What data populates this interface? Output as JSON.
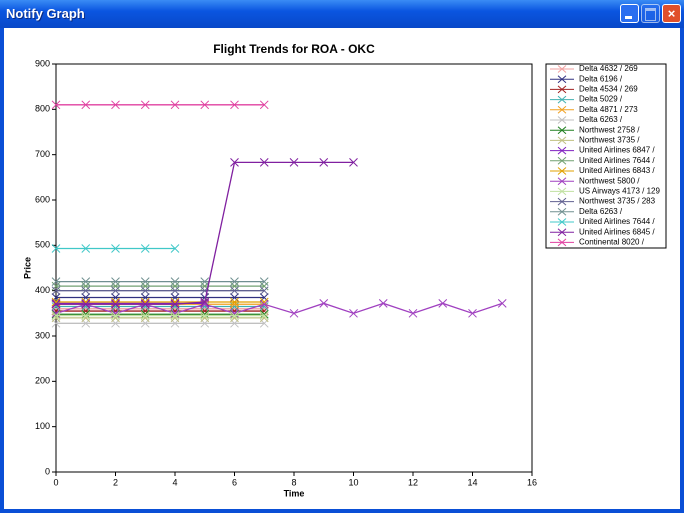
{
  "window_title": "Notify Graph",
  "chart_data": {
    "type": "line",
    "title": "Flight Trends for ROA - OKC",
    "xlabel": "Time",
    "ylabel": "Price",
    "x": [
      0,
      1,
      2,
      3,
      4,
      5,
      6,
      7,
      8,
      9,
      10,
      11,
      12,
      13,
      14,
      15
    ],
    "xlim": [
      0,
      16
    ],
    "xticks": [
      0,
      2,
      4,
      6,
      8,
      10,
      12,
      14,
      16
    ],
    "ylim": [
      0,
      900
    ],
    "yticks": [
      0,
      100,
      200,
      300,
      400,
      500,
      600,
      700,
      800,
      900
    ],
    "legend": "right",
    "series": [
      {
        "name": "Delta 4632 / 269",
        "color": "#f0a0a0",
        "values": [
          360,
          360,
          360,
          360,
          360,
          360,
          360,
          360,
          null,
          null,
          null,
          null,
          null,
          null,
          null,
          null
        ]
      },
      {
        "name": "Delta 6196 /",
        "color": "#303080",
        "values": [
          385,
          385,
          385,
          385,
          385,
          385,
          385,
          385,
          null,
          null,
          null,
          null,
          null,
          null,
          null,
          null
        ]
      },
      {
        "name": "Delta 4534 / 269",
        "color": "#a02020",
        "values": [
          355,
          355,
          355,
          355,
          355,
          355,
          355,
          355,
          null,
          null,
          null,
          null,
          null,
          null,
          null,
          null
        ]
      },
      {
        "name": "Delta 5029 /",
        "color": "#40b0b0",
        "values": [
          365,
          365,
          365,
          365,
          365,
          365,
          365,
          365,
          null,
          null,
          null,
          null,
          null,
          null,
          null,
          null
        ]
      },
      {
        "name": "Delta 4871 / 273",
        "color": "#f0a020",
        "values": [
          370,
          370,
          370,
          370,
          370,
          370,
          370,
          370,
          null,
          null,
          null,
          null,
          null,
          null,
          null,
          null
        ]
      },
      {
        "name": "Delta 6263 /",
        "color": "#c0c0c0",
        "values": [
          328,
          328,
          328,
          328,
          328,
          328,
          328,
          328,
          null,
          null,
          null,
          null,
          null,
          null,
          null,
          null
        ]
      },
      {
        "name": "Northwest 2758 /",
        "color": "#208020",
        "values": [
          348,
          348,
          348,
          348,
          348,
          348,
          348,
          348,
          null,
          null,
          null,
          null,
          null,
          null,
          null,
          null
        ]
      },
      {
        "name": "Northwest 3735 /",
        "color": "#c0c080",
        "values": [
          340,
          340,
          340,
          340,
          340,
          340,
          340,
          340,
          null,
          null,
          null,
          null,
          null,
          null,
          null,
          null
        ]
      },
      {
        "name": "United Airlines 6847 /",
        "color": "#8020c0",
        "values": [
          372,
          372,
          372,
          372,
          372,
          372,
          null,
          null,
          null,
          null,
          null,
          null,
          null,
          null,
          null,
          null
        ]
      },
      {
        "name": "United Airlines 7644 /",
        "color": "#70a070",
        "values": [
          410,
          410,
          410,
          410,
          410,
          410,
          410,
          410,
          null,
          null,
          null,
          null,
          null,
          null,
          null,
          null
        ]
      },
      {
        "name": "United Airlines 6843 /",
        "color": "#e0a000",
        "values": [
          375,
          375,
          375,
          375,
          375,
          375,
          375,
          375,
          null,
          null,
          null,
          null,
          null,
          null,
          null,
          null
        ]
      },
      {
        "name": "Northwest 5800 /",
        "color": "#a040c0",
        "values": [
          350,
          370,
          350,
          370,
          350,
          370,
          350,
          370,
          350,
          372,
          350,
          372,
          350,
          372,
          350,
          372
        ]
      },
      {
        "name": "US Airways 4173 / 129",
        "color": "#c0e0a0",
        "values": [
          345,
          345,
          345,
          345,
          345,
          345,
          345,
          345,
          null,
          null,
          null,
          null,
          null,
          null,
          null,
          null
        ]
      },
      {
        "name": "Northwest 3735 / 283",
        "color": "#606090",
        "values": [
          400,
          400,
          400,
          400,
          400,
          400,
          400,
          400,
          null,
          null,
          null,
          null,
          null,
          null,
          null,
          null
        ]
      },
      {
        "name": "Delta 6263 /",
        "color": "#709090",
        "values": [
          420,
          420,
          420,
          420,
          420,
          420,
          420,
          420,
          null,
          null,
          null,
          null,
          null,
          null,
          null,
          null
        ]
      },
      {
        "name": "United Airlines 7644 /",
        "color": "#40c8c8",
        "values": [
          493,
          493,
          493,
          493,
          493,
          null,
          null,
          null,
          null,
          null,
          null,
          null,
          null,
          null,
          null,
          null
        ]
      },
      {
        "name": "United Airlines 6845 /",
        "color": "#8020a0",
        "values": [
          370,
          370,
          370,
          370,
          370,
          375,
          683,
          683,
          683,
          683,
          683,
          null,
          null,
          null,
          null,
          null
        ]
      },
      {
        "name": "Continental 8020 /",
        "color": "#e040a0",
        "values": [
          810,
          810,
          810,
          810,
          810,
          810,
          810,
          810,
          null,
          null,
          null,
          null,
          null,
          null,
          null,
          null
        ]
      }
    ]
  }
}
